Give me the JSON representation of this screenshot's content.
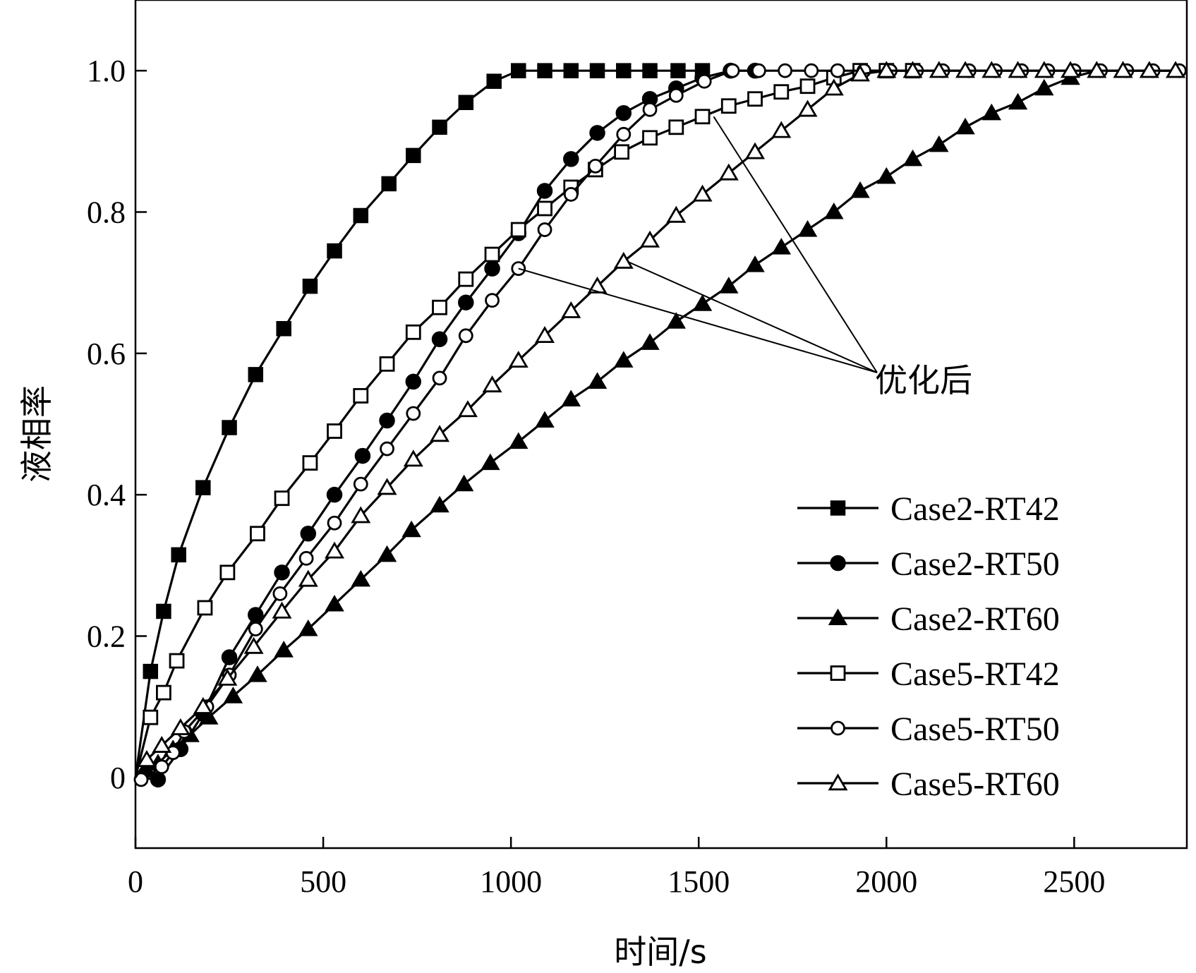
{
  "chart_data": {
    "type": "line",
    "title": "",
    "xlabel": "时间/s",
    "ylabel": "液相率",
    "xlim": [
      0,
      2800
    ],
    "ylim": [
      -0.1,
      1.1
    ],
    "x_ticks": [
      0,
      500,
      1000,
      1500,
      2000,
      2500
    ],
    "x_tick_labels": [
      "0",
      "500",
      "1000",
      "1500",
      "2000",
      "2500"
    ],
    "y_ticks": [
      0,
      0.2,
      0.4,
      0.6,
      0.8,
      1.0
    ],
    "y_tick_labels": [
      "0",
      "0.2",
      "0.4",
      "0.6",
      "0.8",
      "1.0"
    ],
    "grid": false,
    "legend_position": "right",
    "annotation": {
      "text": "优化后",
      "targets": [
        {
          "series": "Case5-RT42",
          "x": 1540,
          "y": 0.935
        },
        {
          "series": "Case5-RT50",
          "x": 1020,
          "y": 0.72
        },
        {
          "series": "Case5-RT60",
          "x": 1310,
          "y": 0.73
        }
      ]
    },
    "series": [
      {
        "name": "Case2-RT42",
        "marker": "square-filled",
        "x": [
          0,
          40,
          75,
          115,
          180,
          250,
          320,
          395,
          465,
          530,
          600,
          675,
          740,
          810,
          880,
          955,
          1020,
          1090,
          1160,
          1230,
          1300,
          1370,
          1445,
          1510
        ],
        "y": [
          0.0,
          0.15,
          0.235,
          0.315,
          0.41,
          0.495,
          0.57,
          0.635,
          0.695,
          0.745,
          0.795,
          0.84,
          0.88,
          0.92,
          0.955,
          0.985,
          1.0,
          1.0,
          1.0,
          1.0,
          1.0,
          1.0,
          1.0,
          1.0
        ]
      },
      {
        "name": "Case2-RT50",
        "marker": "circle-filled",
        "x": [
          0,
          60,
          120,
          180,
          250,
          320,
          390,
          460,
          530,
          605,
          670,
          740,
          810,
          880,
          950,
          1020,
          1090,
          1160,
          1230,
          1300,
          1370,
          1440,
          1510,
          1585,
          1650
        ],
        "y": [
          0.0,
          -0.003,
          0.04,
          0.09,
          0.17,
          0.23,
          0.29,
          0.345,
          0.4,
          0.455,
          0.505,
          0.56,
          0.62,
          0.672,
          0.72,
          0.77,
          0.83,
          0.875,
          0.912,
          0.94,
          0.96,
          0.975,
          0.99,
          1.0,
          1.0
        ]
      },
      {
        "name": "Case2-RT60",
        "marker": "triangle-filled",
        "x": [
          0,
          30,
          60,
          100,
          145,
          195,
          260,
          325,
          395,
          460,
          530,
          600,
          670,
          735,
          810,
          875,
          945,
          1020,
          1090,
          1160,
          1230,
          1300,
          1370,
          1440,
          1510,
          1580,
          1650,
          1720,
          1790,
          1860,
          1930,
          2000,
          2070,
          2140,
          2210,
          2280,
          2350,
          2420,
          2490,
          2560,
          2630,
          2700,
          2770
        ],
        "y": [
          0.0,
          0.01,
          0.02,
          0.04,
          0.06,
          0.085,
          0.115,
          0.145,
          0.18,
          0.21,
          0.245,
          0.28,
          0.315,
          0.35,
          0.385,
          0.415,
          0.445,
          0.475,
          0.505,
          0.535,
          0.56,
          0.59,
          0.615,
          0.645,
          0.67,
          0.695,
          0.725,
          0.75,
          0.775,
          0.8,
          0.83,
          0.85,
          0.875,
          0.895,
          0.92,
          0.94,
          0.955,
          0.975,
          0.99,
          1.0,
          1.0,
          1.0,
          1.0
        ]
      },
      {
        "name": "Case5-RT42",
        "marker": "square-open",
        "x": [
          0,
          40,
          75,
          110,
          185,
          245,
          325,
          390,
          465,
          530,
          600,
          670,
          740,
          810,
          880,
          950,
          1020,
          1090,
          1160,
          1225,
          1295,
          1370,
          1440,
          1510,
          1580,
          1650,
          1720,
          1790,
          1860,
          1930,
          2000,
          2070
        ],
        "y": [
          0.0,
          0.085,
          0.12,
          0.165,
          0.24,
          0.29,
          0.345,
          0.395,
          0.445,
          0.49,
          0.54,
          0.585,
          0.63,
          0.665,
          0.705,
          0.74,
          0.775,
          0.805,
          0.835,
          0.86,
          0.885,
          0.905,
          0.92,
          0.935,
          0.95,
          0.96,
          0.97,
          0.978,
          0.99,
          1.0,
          1.0,
          1.0
        ]
      },
      {
        "name": "Case5-RT50",
        "marker": "circle-open",
        "x": [
          0,
          15,
          70,
          100,
          130,
          190,
          250,
          320,
          385,
          455,
          530,
          600,
          670,
          740,
          810,
          880,
          950,
          1020,
          1090,
          1160,
          1225,
          1300,
          1370,
          1440,
          1515,
          1590,
          1660,
          1730,
          1800,
          1870,
          1940,
          2010,
          2080,
          2150,
          2220,
          2290,
          2360,
          2430,
          2500,
          2570,
          2640,
          2710,
          2780
        ],
        "y": [
          0.0,
          -0.003,
          0.015,
          0.035,
          0.065,
          0.1,
          0.145,
          0.21,
          0.26,
          0.31,
          0.36,
          0.415,
          0.465,
          0.515,
          0.565,
          0.625,
          0.675,
          0.72,
          0.775,
          0.825,
          0.865,
          0.91,
          0.945,
          0.965,
          0.985,
          1.0,
          1.0,
          1.0,
          1.0,
          1.0,
          1.0,
          1.0,
          1.0,
          1.0,
          1.0,
          1.0,
          1.0,
          1.0,
          1.0,
          1.0,
          1.0,
          1.0,
          1.0
        ]
      },
      {
        "name": "Case5-RT60",
        "marker": "triangle-open",
        "x": [
          0,
          30,
          70,
          120,
          180,
          245,
          315,
          390,
          460,
          530,
          600,
          670,
          740,
          810,
          885,
          950,
          1020,
          1090,
          1160,
          1230,
          1300,
          1370,
          1440,
          1510,
          1580,
          1650,
          1720,
          1790,
          1860,
          1930,
          2000,
          2070,
          2140,
          2210,
          2280,
          2350,
          2420,
          2490,
          2560,
          2630,
          2700,
          2770
        ],
        "y": [
          0.0,
          0.025,
          0.045,
          0.07,
          0.1,
          0.14,
          0.185,
          0.235,
          0.28,
          0.32,
          0.37,
          0.41,
          0.45,
          0.485,
          0.52,
          0.555,
          0.59,
          0.625,
          0.66,
          0.695,
          0.73,
          0.76,
          0.795,
          0.825,
          0.855,
          0.885,
          0.915,
          0.945,
          0.975,
          0.995,
          1.0,
          1.0,
          1.0,
          1.0,
          1.0,
          1.0,
          1.0,
          1.0,
          1.0,
          1.0,
          1.0,
          1.0
        ]
      }
    ]
  }
}
